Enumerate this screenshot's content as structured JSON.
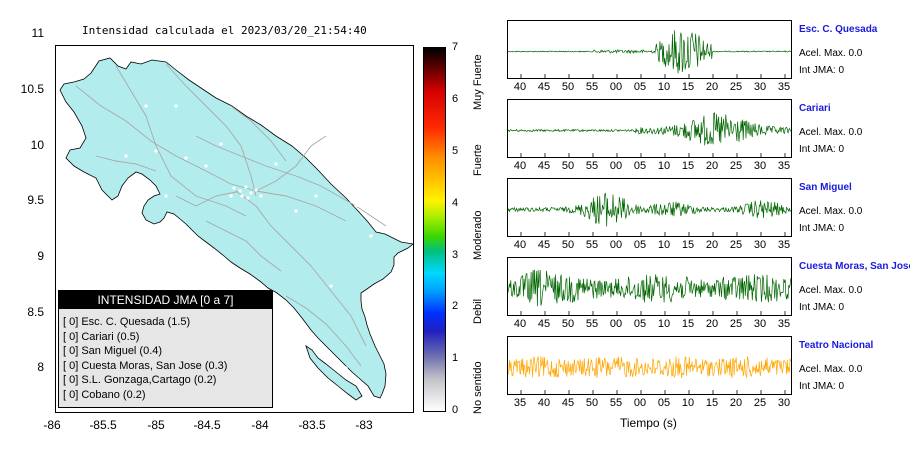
{
  "title": "Intensidad calculada el 2023/03/20_21:54:40",
  "map": {
    "y_ticks": [
      "11",
      "10.5",
      "10",
      "9.5",
      "9",
      "8.5",
      "8"
    ],
    "x_ticks": [
      "-86",
      "-85.5",
      "-85",
      "-84.5",
      "-84",
      "-83.5",
      "-83"
    ],
    "land_color": "#b2eced",
    "road_color": "#a8a8a8"
  },
  "legend": {
    "header": "INTENSIDAD JMA [0 a 7]",
    "rows": [
      "[ 0]  Esc. C. Quesada (1.5)",
      "[ 0]  Cariari (0.5)",
      "[ 0]  San Miguel (0.4)",
      "[ 0]  Cuesta Moras, San Jose (0.3)",
      "[ 0]  S.L. Gonzaga,Cartago (0.2)",
      "[ 0]  Cobano (0.2)"
    ]
  },
  "colorbar": {
    "ticks": [
      "7",
      "6",
      "5",
      "4",
      "3",
      "2",
      "1",
      "0"
    ],
    "labels": [
      "Muy Fuerte",
      "Fuerte",
      "Moderado",
      "Debil",
      "No sentido"
    ]
  },
  "stations": [
    {
      "name": "Esc. C. Quesada",
      "accel": "Acel. Max. 0.0",
      "int": "Int JMA: 0",
      "color": "#006600",
      "ticks": [
        "40",
        "45",
        "50",
        "55",
        "00",
        "05",
        "10",
        "15",
        "20",
        "25",
        "30",
        "35"
      ]
    },
    {
      "name": "Cariari",
      "accel": "Acel. Max. 0.0",
      "int": "Int JMA: 0",
      "color": "#006600",
      "ticks": [
        "40",
        "45",
        "50",
        "55",
        "00",
        "05",
        "10",
        "15",
        "20",
        "25",
        "30",
        "35"
      ]
    },
    {
      "name": "San Miguel",
      "accel": "Acel. Max. 0.0",
      "int": "Int JMA: 0",
      "color": "#006600",
      "ticks": [
        "40",
        "45",
        "50",
        "55",
        "00",
        "05",
        "10",
        "15",
        "20",
        "25",
        "30",
        "35"
      ]
    },
    {
      "name": "Cuesta Moras, San Jose",
      "accel": "Acel. Max. 0.0",
      "int": "Int JMA: 0",
      "color": "#006600",
      "ticks": [
        "40",
        "45",
        "50",
        "55",
        "00",
        "05",
        "10",
        "15",
        "20",
        "25",
        "30",
        "35"
      ]
    },
    {
      "name": "Teatro Nacional",
      "accel": "Acel. Max. 0.0",
      "int": "Int JMA: 0",
      "color": "#ffa500",
      "ticks": [
        "35",
        "40",
        "45",
        "50",
        "55",
        "00",
        "05",
        "10",
        "15",
        "20",
        "25",
        "30"
      ]
    }
  ],
  "time_axis_label": "Tiempo (s)"
}
